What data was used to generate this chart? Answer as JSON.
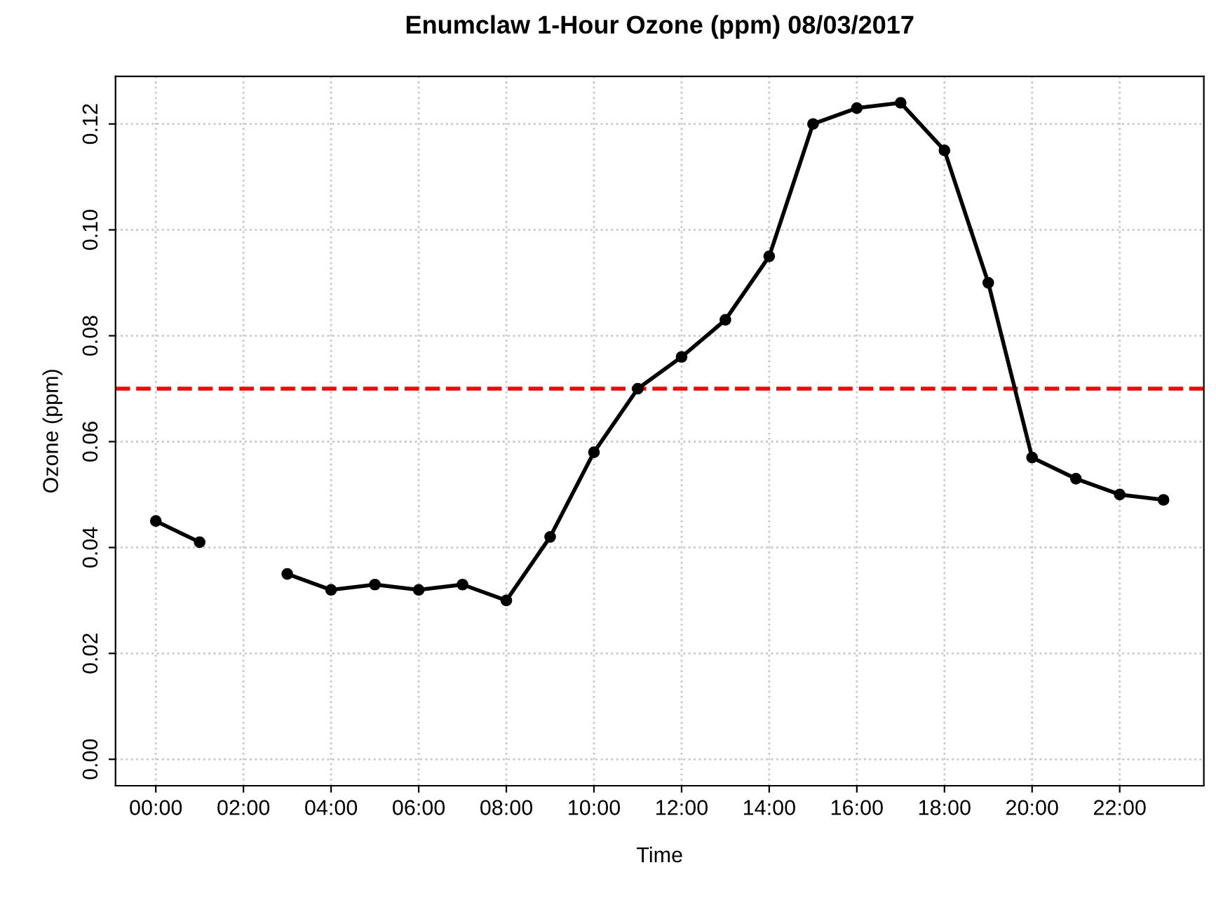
{
  "chart_data": {
    "type": "line",
    "title": "Enumclaw 1-Hour Ozone (ppm) 08/03/2017",
    "xlabel": "Time",
    "ylabel": "Ozone (ppm)",
    "x": [
      0,
      1,
      2,
      3,
      4,
      5,
      6,
      7,
      8,
      9,
      10,
      11,
      12,
      13,
      14,
      15,
      16,
      17,
      18,
      19,
      20,
      21,
      22,
      23
    ],
    "series": [
      {
        "color": "#000000",
        "values": [
          0.045,
          0.041,
          null,
          0.035,
          0.032,
          0.033,
          0.032,
          0.033,
          0.03,
          0.042,
          0.058,
          0.07,
          0.076,
          0.083,
          0.095,
          0.12,
          0.123,
          0.124,
          0.115,
          0.09,
          0.057,
          0.053,
          0.05,
          0.049
        ]
      }
    ],
    "xlim": [
      -0.92,
      23.92
    ],
    "xticks": [
      {
        "value": 0,
        "label": "00:00"
      },
      {
        "value": 2,
        "label": "02:00"
      },
      {
        "value": 4,
        "label": "04:00"
      },
      {
        "value": 6,
        "label": "06:00"
      },
      {
        "value": 8,
        "label": "08:00"
      },
      {
        "value": 10,
        "label": "10:00"
      },
      {
        "value": 12,
        "label": "12:00"
      },
      {
        "value": 14,
        "label": "14:00"
      },
      {
        "value": 16,
        "label": "16:00"
      },
      {
        "value": 18,
        "label": "18:00"
      },
      {
        "value": 20,
        "label": "20:00"
      },
      {
        "value": 22,
        "label": "22:00"
      }
    ],
    "ylim": [
      -0.005,
      0.129
    ],
    "yticks": [
      {
        "value": 0,
        "label": "0.00"
      },
      {
        "value": 0.02,
        "label": "0.02"
      },
      {
        "value": 0.04,
        "label": "0.04"
      },
      {
        "value": 0.06,
        "label": "0.06"
      },
      {
        "value": 0.08,
        "label": "0.08"
      },
      {
        "value": 0.1,
        "label": "0.10"
      },
      {
        "value": 0.12,
        "label": "0.12"
      }
    ],
    "ref_lines": [
      {
        "axis": "y",
        "value": 0.07,
        "color": "#ff0000",
        "line_style": "dashed"
      }
    ],
    "grid": true,
    "marker": "circle",
    "line_style": "solid"
  }
}
